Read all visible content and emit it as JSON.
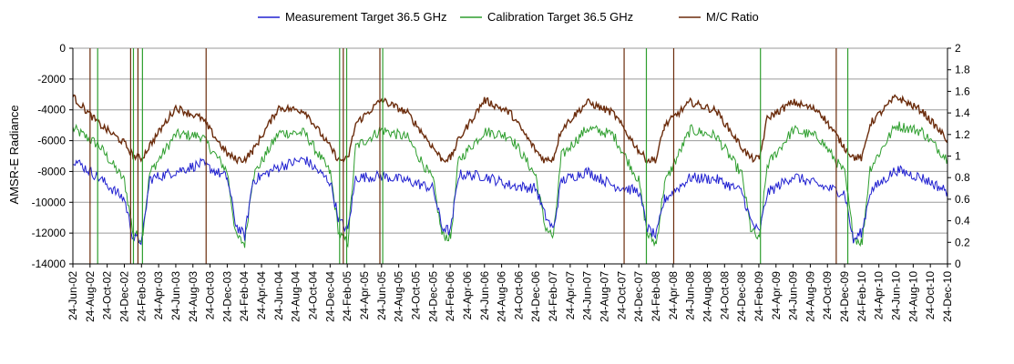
{
  "chart_data": {
    "type": "line",
    "title": "",
    "ylabel": "AMSR-E Radiance",
    "y2label": "",
    "xlabel": "",
    "ylim": [
      -14000,
      0
    ],
    "y2lim": [
      0,
      2
    ],
    "yticks": [
      0,
      -2000,
      -4000,
      -6000,
      -8000,
      -10000,
      -12000,
      -14000
    ],
    "y2ticks": [
      2,
      1.8,
      1.6,
      1.4,
      1.2,
      1,
      0.8,
      0.6,
      0.4,
      0.2,
      0
    ],
    "xlim": [
      "2002-06-24",
      "2010-12-24"
    ],
    "xtick_labels": [
      "24-Jun-02",
      "24-Aug-02",
      "24-Oct-02",
      "24-Dec-02",
      "24-Feb-03",
      "24-Apr-03",
      "24-Jun-03",
      "24-Aug-03",
      "24-Oct-03",
      "24-Dec-03",
      "24-Feb-04",
      "24-Apr-04",
      "24-Jun-04",
      "24-Aug-04",
      "24-Oct-04",
      "24-Dec-04",
      "24-Feb-05",
      "24-Apr-05",
      "24-Jun-05",
      "24-Aug-05",
      "24-Oct-05",
      "24-Dec-05",
      "24-Feb-06",
      "24-Apr-06",
      "24-Jun-06",
      "24-Aug-06",
      "24-Oct-06",
      "24-Dec-06",
      "24-Feb-07",
      "24-Apr-07",
      "24-Jun-07",
      "24-Aug-07",
      "24-Oct-07",
      "24-Dec-07",
      "24-Feb-08",
      "24-Apr-08",
      "24-Jun-08",
      "24-Aug-08",
      "24-Oct-08",
      "24-Dec-08",
      "24-Feb-09",
      "24-Apr-09",
      "24-Jun-09",
      "24-Aug-09",
      "24-Oct-09",
      "24-Dec-09",
      "24-Feb-10",
      "24-Apr-10",
      "24-Jun-10",
      "24-Aug-10",
      "24-Oct-10",
      "24-Dec-10"
    ],
    "grid": "horizontal",
    "legend": "top",
    "series": [
      {
        "name": "Measurement Target 36.5 GHz",
        "color": "#2020d0",
        "axis": "left",
        "x": [
          "2002-06-24",
          "2002-09-24",
          "2002-12-24",
          "2003-01-24",
          "2003-02-24",
          "2003-03-24",
          "2003-06-24",
          "2003-09-24",
          "2003-12-24",
          "2004-01-24",
          "2004-02-24",
          "2004-03-24",
          "2004-06-24",
          "2004-09-24",
          "2004-12-24",
          "2005-01-24",
          "2005-02-24",
          "2005-03-24",
          "2005-06-24",
          "2005-09-24",
          "2005-12-24",
          "2006-01-24",
          "2006-02-24",
          "2006-03-24",
          "2006-06-24",
          "2006-09-24",
          "2006-12-24",
          "2007-01-24",
          "2007-02-24",
          "2007-03-24",
          "2007-06-24",
          "2007-09-24",
          "2007-12-24",
          "2008-01-24",
          "2008-02-24",
          "2008-03-24",
          "2008-06-24",
          "2008-09-24",
          "2008-12-24",
          "2009-01-24",
          "2009-02-24",
          "2009-03-24",
          "2009-06-24",
          "2009-09-24",
          "2009-12-24",
          "2010-01-24",
          "2010-02-24",
          "2010-03-24",
          "2010-06-24",
          "2010-09-24",
          "2010-12-24"
        ],
        "y": [
          -7200,
          -8400,
          -9800,
          -12300,
          -12500,
          -8500,
          -8000,
          -7500,
          -8400,
          -11500,
          -12200,
          -8600,
          -7700,
          -7200,
          -8700,
          -11200,
          -11800,
          -8400,
          -8300,
          -8600,
          -9100,
          -11600,
          -11900,
          -8200,
          -8300,
          -8900,
          -9100,
          -10800,
          -11800,
          -8600,
          -8000,
          -8900,
          -9300,
          -11700,
          -12200,
          -9800,
          -8400,
          -8500,
          -9300,
          -11200,
          -12000,
          -9400,
          -8300,
          -8900,
          -9400,
          -12500,
          -11900,
          -9300,
          -7900,
          -8400,
          -9300
        ]
      },
      {
        "name": "Calibration Target 36.5 GHz",
        "color": "#2e9e2e",
        "axis": "left",
        "x": [
          "2002-06-24",
          "2002-09-24",
          "2002-12-24",
          "2003-01-24",
          "2003-02-24",
          "2003-03-24",
          "2003-06-24",
          "2003-09-24",
          "2003-12-24",
          "2004-01-24",
          "2004-02-24",
          "2004-03-24",
          "2004-06-24",
          "2004-09-24",
          "2004-12-24",
          "2005-01-24",
          "2005-02-24",
          "2005-03-24",
          "2005-06-24",
          "2005-09-24",
          "2005-12-24",
          "2006-01-24",
          "2006-02-24",
          "2006-03-24",
          "2006-06-24",
          "2006-09-24",
          "2006-12-24",
          "2007-01-24",
          "2007-02-24",
          "2007-03-24",
          "2007-06-24",
          "2007-09-24",
          "2007-12-24",
          "2008-01-24",
          "2008-02-24",
          "2008-03-24",
          "2008-06-24",
          "2008-09-24",
          "2008-12-24",
          "2009-01-24",
          "2009-02-24",
          "2009-03-24",
          "2009-06-24",
          "2009-09-24",
          "2009-12-24",
          "2010-01-24",
          "2010-02-24",
          "2010-03-24",
          "2010-06-24",
          "2010-09-24",
          "2010-12-24"
        ],
        "y": [
          -5200,
          -6300,
          -8600,
          -12000,
          -12400,
          -8100,
          -5600,
          -5700,
          -8000,
          -12200,
          -12700,
          -8300,
          -5500,
          -5500,
          -8100,
          -12100,
          -12600,
          -6400,
          -5300,
          -5800,
          -8600,
          -12100,
          -12300,
          -7300,
          -5400,
          -5700,
          -8300,
          -11500,
          -12300,
          -7000,
          -5200,
          -5600,
          -8600,
          -12100,
          -12700,
          -8800,
          -5300,
          -5700,
          -8200,
          -11700,
          -12500,
          -7600,
          -5300,
          -5800,
          -8100,
          -12300,
          -12600,
          -7800,
          -5000,
          -5400,
          -7200
        ]
      },
      {
        "name": "M/C Ratio",
        "color": "#6b2c0c",
        "axis": "right",
        "x": [
          "2002-06-24",
          "2002-09-24",
          "2002-12-24",
          "2003-01-24",
          "2003-02-24",
          "2003-03-24",
          "2003-06-24",
          "2003-09-24",
          "2003-12-24",
          "2004-01-24",
          "2004-02-24",
          "2004-03-24",
          "2004-06-24",
          "2004-09-24",
          "2004-12-24",
          "2005-01-24",
          "2005-02-24",
          "2005-03-24",
          "2005-06-24",
          "2005-09-24",
          "2005-12-24",
          "2006-01-24",
          "2006-02-24",
          "2006-03-24",
          "2006-06-24",
          "2006-09-24",
          "2006-12-24",
          "2007-01-24",
          "2007-02-24",
          "2007-03-24",
          "2007-06-24",
          "2007-09-24",
          "2007-12-24",
          "2008-01-24",
          "2008-02-24",
          "2008-03-24",
          "2008-06-24",
          "2008-09-24",
          "2008-12-24",
          "2009-01-24",
          "2009-02-24",
          "2009-03-24",
          "2009-06-24",
          "2009-09-24",
          "2009-12-24",
          "2010-01-24",
          "2010-02-24",
          "2010-03-24",
          "2010-06-24",
          "2010-09-24",
          "2010-12-24"
        ],
        "y": [
          1.55,
          1.3,
          1.12,
          1.0,
          0.98,
          1.1,
          1.45,
          1.35,
          1.02,
          0.97,
          0.97,
          1.05,
          1.45,
          1.42,
          1.08,
          0.96,
          0.97,
          1.3,
          1.52,
          1.4,
          1.08,
          0.97,
          0.98,
          1.15,
          1.52,
          1.4,
          1.05,
          0.96,
          0.98,
          1.25,
          1.5,
          1.4,
          1.05,
          0.96,
          0.97,
          1.28,
          1.5,
          1.42,
          1.08,
          0.98,
          0.97,
          1.35,
          1.5,
          1.42,
          1.08,
          0.99,
          0.98,
          1.3,
          1.55,
          1.42,
          1.15
        ]
      }
    ],
    "spikes": {
      "color": "#2e9e2e",
      "dates": [
        "2002-08-24",
        "2002-09-20",
        "2003-01-15",
        "2003-01-25",
        "2003-02-10",
        "2003-02-26",
        "2003-10-10",
        "2005-01-26",
        "2005-02-08",
        "2005-02-20",
        "2005-06-18",
        "2005-06-28",
        "2007-11-02",
        "2008-01-20",
        "2008-04-26",
        "2009-02-28",
        "2009-11-24",
        "2010-01-04"
      ]
    }
  }
}
